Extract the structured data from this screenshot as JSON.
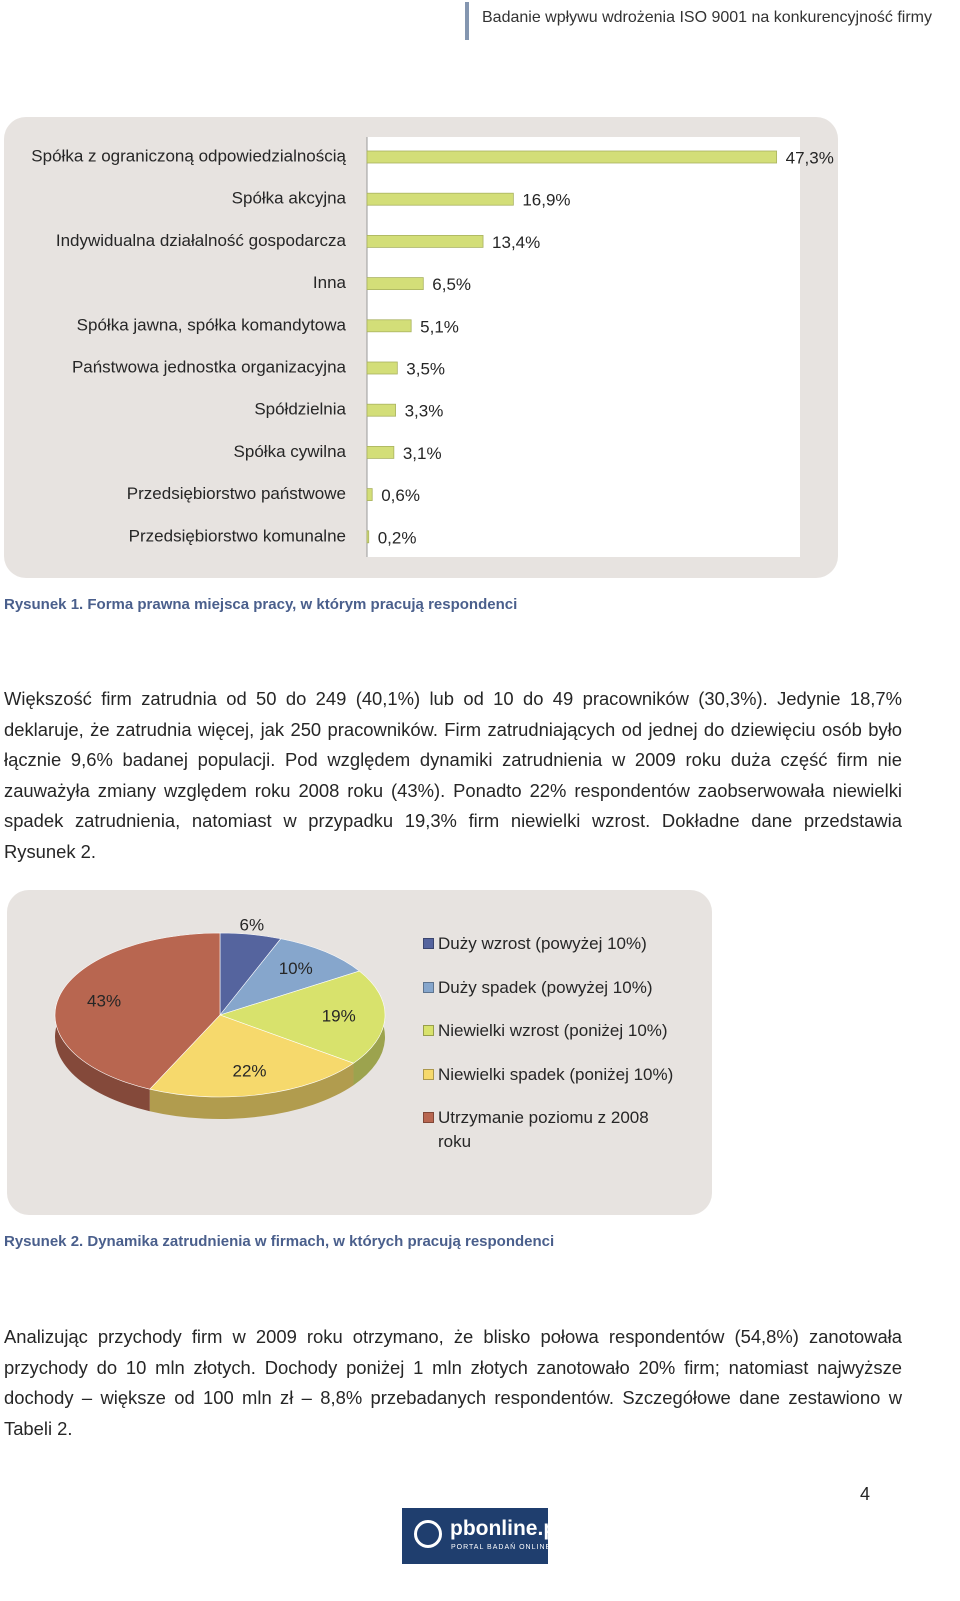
{
  "header": {
    "title": "Badanie wpływu wdrożenia ISO 9001 na konkurencyjność firmy"
  },
  "chart_data": [
    {
      "type": "bar",
      "orientation": "horizontal",
      "categories": [
        "Spółka z ograniczoną odpowiedzialnością",
        "Spółka akcyjna",
        "Indywidualna działalność gospodarcza",
        "Inna",
        "Spółka jawna, spółka komandytowa",
        "Państwowa jednostka organizacyjna",
        "Spółdzielnia",
        "Spółka cywilna",
        "Przedsiębiorstwo państwowe",
        "Przedsiębiorstwo komunalne"
      ],
      "values": [
        47.3,
        16.9,
        13.4,
        6.5,
        5.1,
        3.5,
        3.3,
        3.1,
        0.6,
        0.2
      ],
      "value_labels": [
        "47,3%",
        "16,9%",
        "13,4%",
        "6,5%",
        "5,1%",
        "3,5%",
        "3,3%",
        "3,1%",
        "0,6%",
        "0,2%"
      ],
      "color": "#d3de78",
      "xlim": [
        0,
        50
      ]
    },
    {
      "type": "pie",
      "categories": [
        "Duży wzrost (powyżej 10%)",
        "Duży spadek (powyżej 10%)",
        "Niewielki wzrost (poniżej 10%)",
        "Niewielki spadek (poniżej 10%)",
        "Utrzymanie poziomu z 2008 roku"
      ],
      "values": [
        6,
        10,
        19,
        22,
        43
      ],
      "value_labels": [
        "6%",
        "10%",
        "19%",
        "22%",
        "43%"
      ],
      "colors": [
        "#55649e",
        "#86a6cc",
        "#d8e26c",
        "#f6d96c",
        "#b86650"
      ],
      "legend": "right"
    }
  ],
  "captions": [
    "Rysunek 1. Forma prawna miejsca pracy, w którym pracują respondenci",
    "Rysunek 2. Dynamika zatrudnienia w firmach, w których pracują respondenci"
  ],
  "paragraphs": [
    "Większość firm zatrudnia od 50 do 249 (40,1%) lub od 10 do 49 pracowników (30,3%). Jedynie 18,7% deklaruje, że zatrudnia więcej, jak 250 pracowników. Firm zatrudniających od jednej do dziewięciu osób było łącznie 9,6% badanej populacji. Pod względem dynamiki zatrudnienia w 2009 roku duża część firm nie zauważyła zmiany względem roku 2008 roku (43%). Ponadto 22% respondentów zaobserwowała niewielki spadek zatrudnienia, natomiast  w przypadku 19,3% firm niewielki wzrost. Dokładne dane przedstawia Rysunek 2.",
    "Analizując przychody firm w 2009 roku otrzymano, że blisko połowa respondentów (54,8%) zanotowała przychody do 10 mln złotych. Dochody poniżej 1 mln złotych zanotowało 20% firm; natomiast najwyższe dochody – większe od 100 mln zł – 8,8% przebadanych respondentów. Szczegółowe dane zestawiono w Tabeli 2."
  ],
  "page_number": "4",
  "logo": {
    "name": "pbonline.pl",
    "tagline": "PORTAL BADAŃ ONLINE"
  }
}
